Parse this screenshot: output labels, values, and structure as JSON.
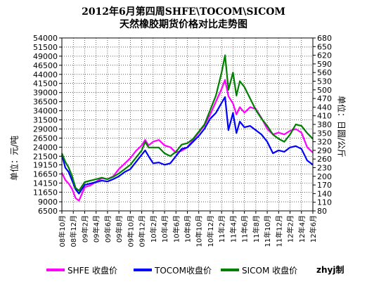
{
  "chart_data": {
    "type": "line",
    "title": "2012年6月第四周SHFE\\TOCOM\\SICOM",
    "subtitle": "天然橡胶期货价格对比走势图",
    "ylabel_left": "单位：元/吨",
    "ylabel_right": "单位：日圆/公斤",
    "ylim_left": [
      6500,
      54000
    ],
    "ylim_right": [
      80,
      680
    ],
    "yticks_left": [
      6500,
      9000,
      11650,
      14150,
      16650,
      19150,
      21500,
      24000,
      26500,
      29000,
      31500,
      34000,
      36500,
      39000,
      41500,
      44000,
      46500,
      49000,
      51500,
      54000
    ],
    "yticks_right": [
      80,
      110,
      140,
      170,
      200,
      230,
      260,
      290,
      320,
      350,
      380,
      410,
      440,
      470,
      500,
      530,
      560,
      590,
      620,
      650,
      680
    ],
    "x_ticks": [
      "08年10月",
      "08年12月",
      "09年2月",
      "09年4月",
      "09年6月",
      "09年8月",
      "09年10月",
      "09年12月",
      "10年2月",
      "10年4月",
      "10年6月",
      "10年8月",
      "10年10月",
      "10年12月",
      "11年2月",
      "11年4月",
      "11年6月",
      "11年8月",
      "11年10月",
      "11年12月",
      "12年2月",
      "12年4月",
      "12年6月"
    ],
    "x_range": [
      0,
      22
    ],
    "grid": true,
    "legend_position": "bottom",
    "series": [
      {
        "name": "SHFE 收盘价",
        "axis": "left",
        "color": "#ff00ff",
        "x": [
          0,
          0.3,
          0.6,
          0.9,
          1.2,
          1.5,
          2,
          2.5,
          3,
          3.5,
          4,
          4.5,
          5,
          5.5,
          6,
          6.5,
          7,
          7.3,
          7.6,
          8,
          8.5,
          9,
          9.5,
          10,
          10.5,
          11,
          11.5,
          12,
          12.5,
          13,
          13.5,
          14,
          14.3,
          14.6,
          15,
          15.3,
          15.6,
          16,
          16.5,
          17,
          17.5,
          18,
          18.5,
          19,
          19.5,
          20,
          20.5,
          21,
          21.5,
          22
        ],
        "values": [
          17000,
          15000,
          14000,
          12500,
          10000,
          9300,
          13000,
          13500,
          14500,
          15500,
          15200,
          16000,
          18000,
          19500,
          21000,
          23000,
          24500,
          26000,
          24500,
          25500,
          26000,
          24500,
          24000,
          22500,
          23000,
          24000,
          26000,
          28000,
          30000,
          33000,
          36500,
          40000,
          42500,
          38000,
          36000,
          33000,
          35000,
          33500,
          35000,
          34500,
          32000,
          29000,
          27500,
          28000,
          27500,
          28500,
          29000,
          28000,
          24000,
          22500
        ]
      },
      {
        "name": "TOCOM收盘价",
        "axis": "right",
        "color": "#0000ff",
        "x": [
          0,
          0.3,
          0.6,
          0.9,
          1.2,
          1.5,
          2,
          2.5,
          3,
          3.5,
          4,
          4.5,
          5,
          5.5,
          6,
          6.5,
          7,
          7.3,
          7.6,
          8,
          8.5,
          9,
          9.5,
          10,
          10.5,
          11,
          11.5,
          12,
          12.5,
          13,
          13.5,
          14,
          14.3,
          14.6,
          15,
          15.3,
          15.6,
          16,
          16.5,
          17,
          17.5,
          18,
          18.5,
          19,
          19.5,
          20,
          20.5,
          21,
          21.5,
          22
        ],
        "values": [
          275,
          230,
          215,
          185,
          155,
          140,
          170,
          175,
          180,
          185,
          182,
          190,
          200,
          215,
          225,
          250,
          275,
          290,
          270,
          245,
          248,
          240,
          245,
          270,
          295,
          300,
          320,
          340,
          365,
          400,
          420,
          455,
          475,
          360,
          420,
          350,
          390,
          370,
          375,
          360,
          345,
          320,
          280,
          290,
          285,
          300,
          305,
          295,
          255,
          240
        ]
      },
      {
        "name": "SICOM 收盘价",
        "axis": "right",
        "color": "#008000",
        "x": [
          0,
          0.3,
          0.6,
          0.9,
          1.2,
          1.5,
          2,
          2.5,
          3,
          3.5,
          4,
          4.5,
          5,
          5.5,
          6,
          6.5,
          7,
          7.3,
          7.6,
          8,
          8.5,
          9,
          9.5,
          10,
          10.5,
          11,
          11.5,
          12,
          12.5,
          13,
          13.5,
          14,
          14.3,
          14.6,
          15,
          15.3,
          15.6,
          16,
          16.5,
          17,
          17.5,
          18,
          18.5,
          19,
          19.5,
          20,
          20.5,
          21,
          21.5,
          22
        ],
        "values": [
          280,
          250,
          230,
          200,
          160,
          150,
          180,
          185,
          190,
          195,
          190,
          198,
          210,
          225,
          240,
          265,
          290,
          320,
          300,
          300,
          300,
          280,
          270,
          285,
          310,
          315,
          330,
          355,
          380,
          430,
          480,
          560,
          620,
          500,
          560,
          480,
          530,
          510,
          470,
          430,
          400,
          375,
          345,
          330,
          320,
          345,
          380,
          375,
          350,
          330
        ]
      }
    ]
  },
  "legend": [
    {
      "label": "SHFE 收盘价",
      "color": "#ff00ff"
    },
    {
      "label": "TOCOM收盘价",
      "color": "#0000ff"
    },
    {
      "label": "SICOM 收盘价",
      "color": "#008000"
    }
  ],
  "watermark": "zhyj制"
}
